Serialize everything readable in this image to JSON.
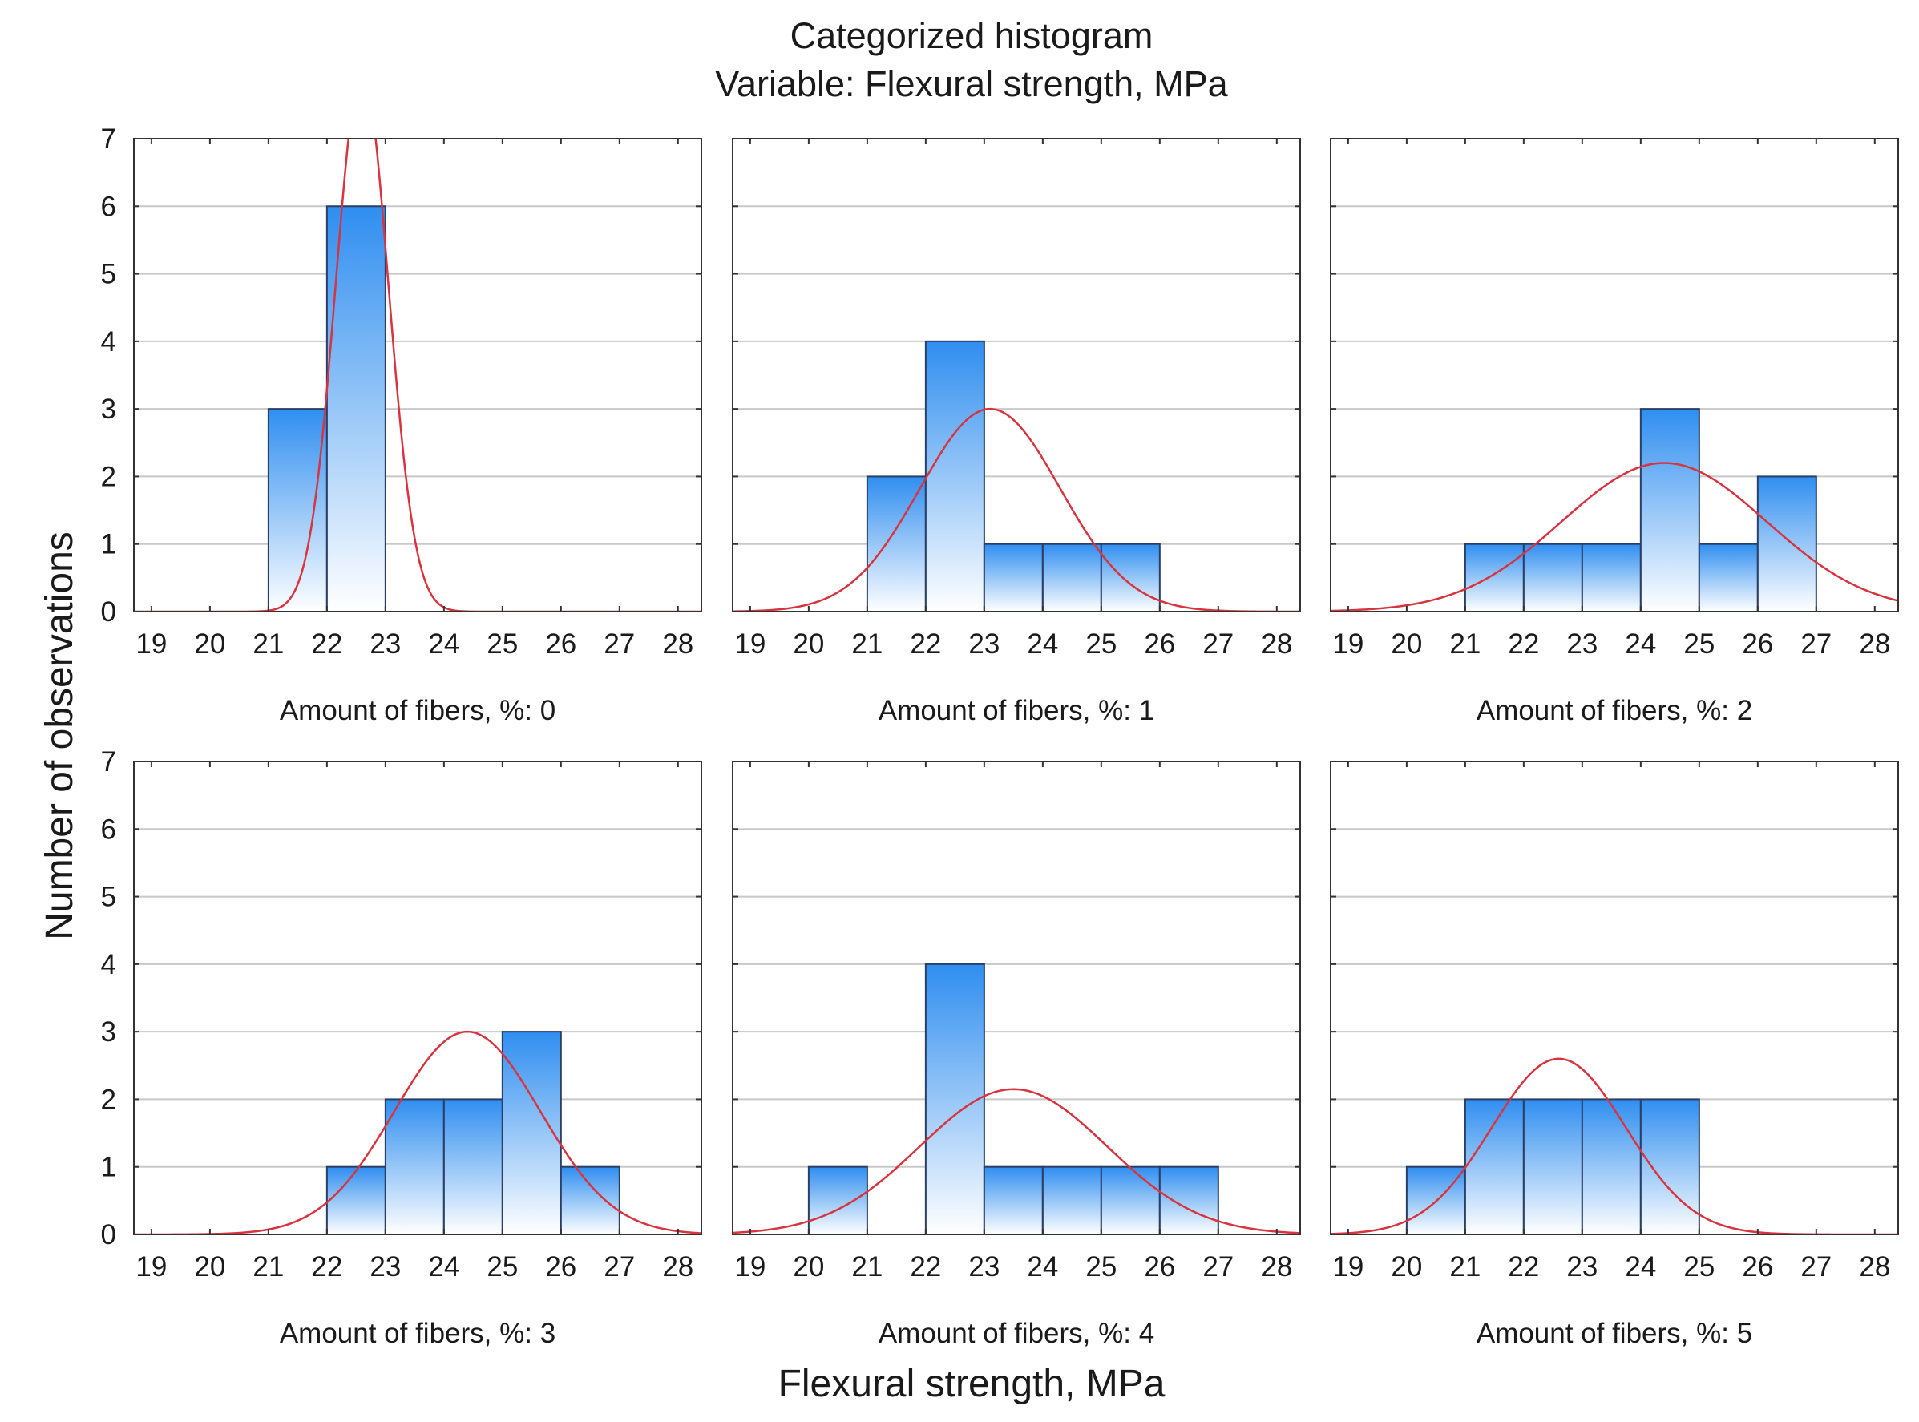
{
  "title_line1": "Categorized histogram",
  "title_line2": "Variable: Flexural strength, MPa",
  "ylabel": "Number of observations",
  "xlabel": "Flexural strength, MPa",
  "colors": {
    "bar_top": "#2f8ef0",
    "bar_bottom": "#ffffff",
    "bar_stroke": "#2a3f66",
    "curve": "#d8343f",
    "grid": "#c8c8c8",
    "frame": "#333333"
  },
  "chart_data": [
    {
      "type": "bar",
      "panel_label": "Amount of fibers, %: 0",
      "bin_edges": [
        19,
        20,
        21,
        22,
        23,
        24,
        25,
        26,
        27,
        28
      ],
      "counts": [
        0,
        0,
        3,
        6,
        0,
        0,
        0,
        0,
        0
      ],
      "x_ticks": [
        19,
        20,
        21,
        22,
        23,
        24,
        25,
        26,
        27,
        28
      ],
      "y_ticks": [
        0,
        1,
        2,
        3,
        4,
        5,
        6,
        7
      ],
      "xlim": [
        18.7,
        28.4
      ],
      "ylim": [
        0,
        7
      ],
      "normal_fit": {
        "mean": 22.6,
        "sd": 0.45,
        "peak": 8.0
      }
    },
    {
      "type": "bar",
      "panel_label": "Amount of fibers, %: 1",
      "bin_edges": [
        19,
        20,
        21,
        22,
        23,
        24,
        25,
        26,
        27,
        28
      ],
      "counts": [
        0,
        0,
        2,
        4,
        1,
        1,
        1,
        0,
        0
      ],
      "x_ticks": [
        19,
        20,
        21,
        22,
        23,
        24,
        25,
        26,
        27,
        28
      ],
      "y_ticks": [
        0,
        1,
        2,
        3,
        4,
        5,
        6,
        7
      ],
      "xlim": [
        18.7,
        28.4
      ],
      "ylim": [
        0,
        7
      ],
      "normal_fit": {
        "mean": 23.1,
        "sd": 1.2,
        "peak": 3.0
      }
    },
    {
      "type": "bar",
      "panel_label": "Amount of fibers, %: 2",
      "bin_edges": [
        19,
        20,
        21,
        22,
        23,
        24,
        25,
        26,
        27,
        28
      ],
      "counts": [
        0,
        0,
        1,
        1,
        1,
        3,
        1,
        2,
        0
      ],
      "x_ticks": [
        19,
        20,
        21,
        22,
        23,
        24,
        25,
        26,
        27,
        28
      ],
      "y_ticks": [
        0,
        1,
        2,
        3,
        4,
        5,
        6,
        7
      ],
      "xlim": [
        18.7,
        28.4
      ],
      "ylim": [
        0,
        7
      ],
      "normal_fit": {
        "mean": 24.4,
        "sd": 1.75,
        "peak": 2.2
      }
    },
    {
      "type": "bar",
      "panel_label": "Amount of fibers, %: 3",
      "bin_edges": [
        19,
        20,
        21,
        22,
        23,
        24,
        25,
        26,
        27,
        28
      ],
      "counts": [
        0,
        0,
        0,
        1,
        2,
        2,
        3,
        1,
        0
      ],
      "x_ticks": [
        19,
        20,
        21,
        22,
        23,
        24,
        25,
        26,
        27,
        28
      ],
      "y_ticks": [
        0,
        1,
        2,
        3,
        4,
        5,
        6,
        7
      ],
      "xlim": [
        18.7,
        28.4
      ],
      "ylim": [
        0,
        7
      ],
      "normal_fit": {
        "mean": 24.4,
        "sd": 1.25,
        "peak": 3.0
      }
    },
    {
      "type": "bar",
      "panel_label": "Amount of fibers, %: 4",
      "bin_edges": [
        19,
        20,
        21,
        22,
        23,
        24,
        25,
        26,
        27,
        28
      ],
      "counts": [
        0,
        1,
        0,
        4,
        1,
        1,
        1,
        1,
        0
      ],
      "x_ticks": [
        19,
        20,
        21,
        22,
        23,
        24,
        25,
        26,
        27,
        28
      ],
      "y_ticks": [
        0,
        1,
        2,
        3,
        4,
        5,
        6,
        7
      ],
      "xlim": [
        18.7,
        28.4
      ],
      "ylim": [
        0,
        7
      ],
      "normal_fit": {
        "mean": 23.5,
        "sd": 1.6,
        "peak": 2.15
      }
    },
    {
      "type": "bar",
      "panel_label": "Amount of fibers, %: 5",
      "bin_edges": [
        19,
        20,
        21,
        22,
        23,
        24,
        25,
        26,
        27,
        28
      ],
      "counts": [
        0,
        1,
        2,
        2,
        2,
        2,
        0,
        0,
        0
      ],
      "x_ticks": [
        19,
        20,
        21,
        22,
        23,
        24,
        25,
        26,
        27,
        28
      ],
      "y_ticks": [
        0,
        1,
        2,
        3,
        4,
        5,
        6,
        7
      ],
      "xlim": [
        18.7,
        28.4
      ],
      "ylim": [
        0,
        7
      ],
      "normal_fit": {
        "mean": 22.6,
        "sd": 1.15,
        "peak": 2.6
      }
    }
  ]
}
